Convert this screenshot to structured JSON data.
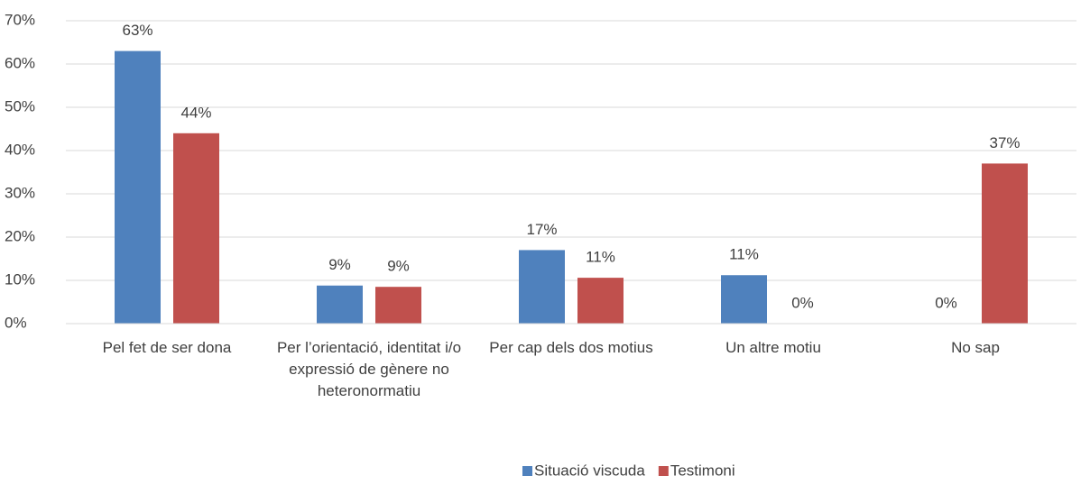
{
  "chart_data": {
    "type": "bar",
    "categories": [
      "Pel fet de ser dona",
      "Per l’orientació, identitat i/o expressió de gènere no heteronormatiu",
      "Per cap dels dos motius",
      "Un altre motiu",
      "No sap"
    ],
    "series": [
      {
        "name": "Situació viscuda",
        "color": "#4f81bd",
        "values": [
          63,
          8.8,
          17,
          11.2,
          0
        ],
        "value_labels": [
          "63%",
          "9%",
          "17%",
          "11%",
          "0%"
        ]
      },
      {
        "name": "Testimoni",
        "color": "#c0504d",
        "values": [
          44,
          8.5,
          10.6,
          0,
          37
        ],
        "value_labels": [
          "44%",
          "9%",
          "11%",
          "0%",
          "37%"
        ]
      }
    ],
    "ylim": [
      0,
      70
    ],
    "yticks": [
      {
        "value": 0,
        "label": "0%"
      },
      {
        "value": 10,
        "label": "10%"
      },
      {
        "value": 20,
        "label": "20%"
      },
      {
        "value": 30,
        "label": "30%"
      },
      {
        "value": 40,
        "label": "40%"
      },
      {
        "value": 50,
        "label": "50%"
      },
      {
        "value": 60,
        "label": "60%"
      },
      {
        "value": 70,
        "label": "70%"
      }
    ],
    "grid": true,
    "legend": "bottom"
  }
}
